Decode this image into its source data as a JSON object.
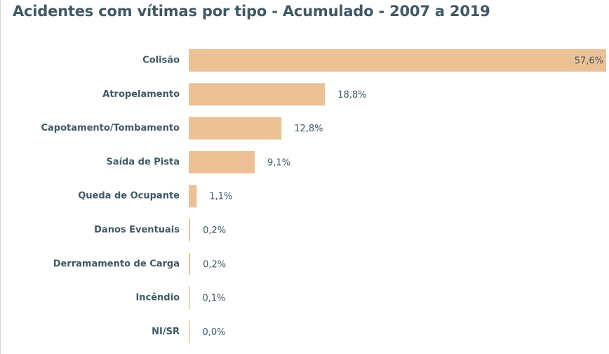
{
  "chart_data": {
    "type": "bar",
    "orientation": "horizontal",
    "title": "Acidentes com vítimas por tipo - Acumulado - 2007 a 2019",
    "categories": [
      "Colisão",
      "Atropelamento",
      "Capotamento/Tombamento",
      "Saída de Pista",
      "Queda de Ocupante",
      "Danos Eventuais",
      "Derramamento de Carga",
      "Incêndio",
      "NI/SR"
    ],
    "values": [
      57.6,
      18.8,
      12.8,
      9.1,
      1.1,
      0.2,
      0.2,
      0.1,
      0.0
    ],
    "value_labels": [
      "57,6%",
      "18,8%",
      "12,8%",
      "9,1%",
      "1,1%",
      "0,2%",
      "0,2%",
      "0,1%",
      "0,0%"
    ],
    "xlabel": "",
    "ylabel": "",
    "xlim": [
      0,
      57.6
    ],
    "grid": false,
    "legend": "none",
    "colors": {
      "bar": "#ecc195",
      "text": "#3f5963"
    }
  }
}
